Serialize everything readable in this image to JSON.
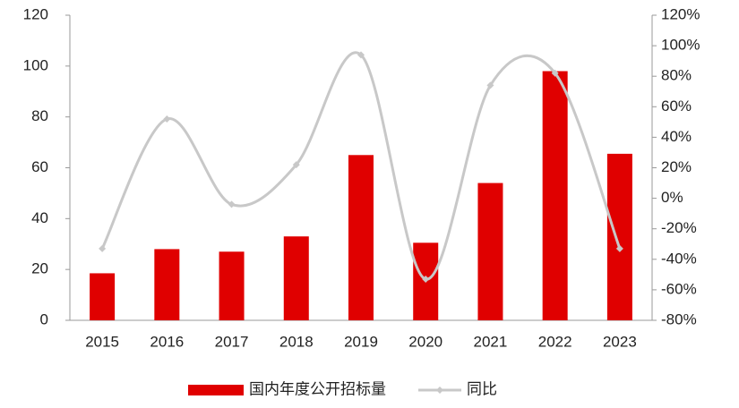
{
  "chart_data": {
    "type": "bar_line",
    "categories": [
      "2015",
      "2016",
      "2017",
      "2018",
      "2019",
      "2020",
      "2021",
      "2022",
      "2023"
    ],
    "series": [
      {
        "name": "国内年度公开招标量",
        "color": "#e00000",
        "type": "bar",
        "values": [
          18.5,
          28,
          27,
          33,
          65,
          30.5,
          54,
          98,
          65.5
        ]
      },
      {
        "name": "同比",
        "color": "#c8c8c8",
        "type": "line",
        "axis": "y2",
        "values": [
          -33,
          52,
          -4,
          22,
          94,
          -53,
          74,
          82,
          -33
        ]
      }
    ],
    "ylim": [
      0,
      120
    ],
    "yticks": [
      0,
      20,
      40,
      60,
      80,
      100,
      120
    ],
    "y2lim": [
      -80,
      120
    ],
    "y2ticks": [
      {
        "value": -80,
        "label": "-80%"
      },
      {
        "value": -60,
        "label": "-60%"
      },
      {
        "value": -40,
        "label": "-40%"
      },
      {
        "value": -20,
        "label": "-20%"
      },
      {
        "value": 0,
        "label": "0%"
      },
      {
        "value": 20,
        "label": "20%"
      },
      {
        "value": 40,
        "label": "40%"
      },
      {
        "value": 60,
        "label": "60%"
      },
      {
        "value": 80,
        "label": "80%"
      },
      {
        "value": 100,
        "label": "100%"
      },
      {
        "value": 120,
        "label": "120%"
      }
    ]
  }
}
